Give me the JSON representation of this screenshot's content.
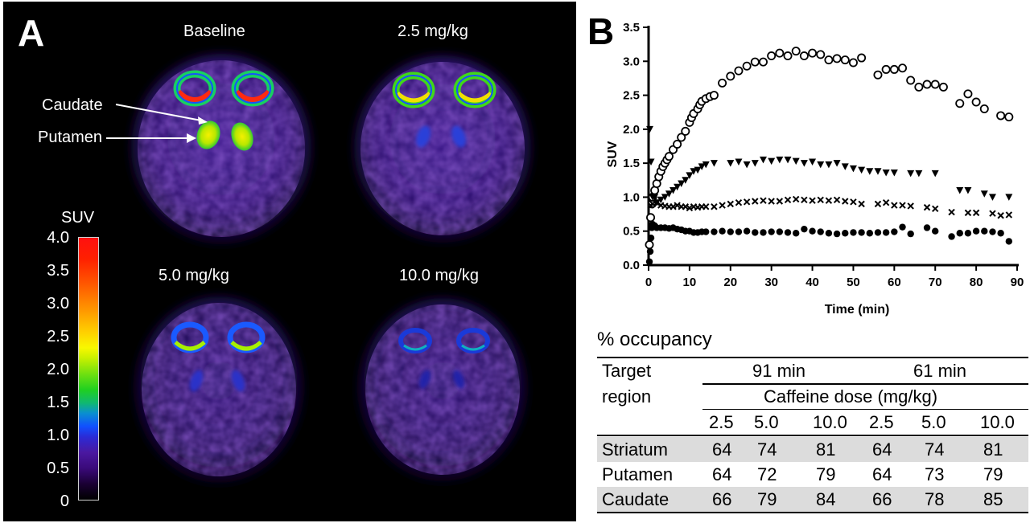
{
  "panel_a": {
    "letter": "A",
    "images": [
      {
        "title": "Baseline"
      },
      {
        "title": "2.5 mg/kg"
      },
      {
        "title": "5.0 mg/kg"
      },
      {
        "title": "10.0 mg/kg"
      }
    ],
    "annotations": {
      "caudate": "Caudate",
      "putamen": "Putamen"
    },
    "colorbar": {
      "title": "SUV",
      "ticks": [
        "4.0",
        "3.5",
        "3.0",
        "2.5",
        "2.0",
        "1.5",
        "1.0",
        "0.5",
        "0"
      ]
    }
  },
  "panel_b": {
    "letter": "B",
    "table": {
      "title": "% occupancy",
      "row_header": [
        "Target",
        "region"
      ],
      "time_groups": [
        "91 min",
        "61 min"
      ],
      "dose_header": "Caffeine dose (mg/kg)",
      "doses": [
        "2.5",
        "5.0",
        "10.0",
        "2.5",
        "5.0",
        "10.0"
      ],
      "rows": [
        {
          "region": "Striatum",
          "values": [
            "64",
            "74",
            "81",
            "64",
            "74",
            "81"
          ]
        },
        {
          "region": "Putamen",
          "values": [
            "64",
            "72",
            "79",
            "64",
            "73",
            "79"
          ]
        },
        {
          "region": "Caudate",
          "values": [
            "66",
            "79",
            "84",
            "66",
            "78",
            "85"
          ]
        }
      ]
    }
  },
  "chart_data": {
    "type": "scatter",
    "title": "",
    "xlabel": "Time (min)",
    "ylabel": "SUV",
    "xlim": [
      0,
      90
    ],
    "ylim": [
      0,
      3.5
    ],
    "xticks": [
      "0",
      "10",
      "20",
      "30",
      "40",
      "50",
      "60",
      "70",
      "80",
      "90"
    ],
    "yticks": [
      "0.0",
      "0.5",
      "1.0",
      "1.5",
      "2.0",
      "2.5",
      "3.0",
      "3.5"
    ],
    "series": [
      {
        "marker": "open-circle",
        "points": [
          [
            0.2,
            0.3
          ],
          [
            0.5,
            0.7
          ],
          [
            0.8,
            0.9
          ],
          [
            1,
            1.0
          ],
          [
            1.5,
            1.1
          ],
          [
            2,
            1.2
          ],
          [
            2.5,
            1.3
          ],
          [
            3,
            1.38
          ],
          [
            3.5,
            1.45
          ],
          [
            4,
            1.5
          ],
          [
            4.5,
            1.55
          ],
          [
            5,
            1.6
          ],
          [
            6,
            1.7
          ],
          [
            7,
            1.78
          ],
          [
            8,
            1.88
          ],
          [
            9,
            1.97
          ],
          [
            10,
            2.1
          ],
          [
            10.5,
            2.17
          ],
          [
            11,
            2.23
          ],
          [
            12,
            2.3
          ],
          [
            12.5,
            2.36
          ],
          [
            13,
            2.41
          ],
          [
            14,
            2.45
          ],
          [
            15,
            2.48
          ],
          [
            16,
            2.5
          ],
          [
            18,
            2.68
          ],
          [
            20,
            2.78
          ],
          [
            22,
            2.86
          ],
          [
            24,
            2.93
          ],
          [
            26,
            2.99
          ],
          [
            28,
            2.99
          ],
          [
            30,
            3.08
          ],
          [
            32,
            3.12
          ],
          [
            34,
            3.08
          ],
          [
            36,
            3.15
          ],
          [
            38,
            3.08
          ],
          [
            40,
            3.12
          ],
          [
            42,
            3.1
          ],
          [
            44,
            3.02
          ],
          [
            46,
            3.04
          ],
          [
            48,
            3.02
          ],
          [
            50,
            2.98
          ],
          [
            52,
            3.05
          ],
          [
            56,
            2.8
          ],
          [
            58,
            2.88
          ],
          [
            60,
            2.88
          ],
          [
            62,
            2.9
          ],
          [
            64,
            2.72
          ],
          [
            66,
            2.62
          ],
          [
            68,
            2.66
          ],
          [
            70,
            2.66
          ],
          [
            72,
            2.62
          ],
          [
            76,
            2.38
          ],
          [
            78,
            2.52
          ],
          [
            80,
            2.4
          ],
          [
            82,
            2.3
          ],
          [
            86,
            2.2
          ],
          [
            88,
            2.18
          ]
        ]
      },
      {
        "marker": "filled-triangle-down",
        "points": [
          [
            0.3,
            2.0
          ],
          [
            0.6,
            1.52
          ],
          [
            1,
            1.0
          ],
          [
            1.5,
            1.0
          ],
          [
            2,
            0.92
          ],
          [
            3,
            0.96
          ],
          [
            4,
            1.0
          ],
          [
            5,
            1.05
          ],
          [
            6,
            1.1
          ],
          [
            7,
            1.15
          ],
          [
            8,
            1.2
          ],
          [
            9,
            1.25
          ],
          [
            10,
            1.32
          ],
          [
            11,
            1.38
          ],
          [
            12,
            1.4
          ],
          [
            13,
            1.45
          ],
          [
            14,
            1.48
          ],
          [
            16,
            1.5
          ],
          [
            20,
            1.5
          ],
          [
            22,
            1.52
          ],
          [
            24,
            1.48
          ],
          [
            26,
            1.5
          ],
          [
            28,
            1.55
          ],
          [
            30,
            1.53
          ],
          [
            32,
            1.55
          ],
          [
            34,
            1.55
          ],
          [
            36,
            1.53
          ],
          [
            38,
            1.5
          ],
          [
            40,
            1.52
          ],
          [
            42,
            1.48
          ],
          [
            44,
            1.48
          ],
          [
            46,
            1.5
          ],
          [
            48,
            1.45
          ],
          [
            50,
            1.42
          ],
          [
            52,
            1.4
          ],
          [
            54,
            1.38
          ],
          [
            56,
            1.38
          ],
          [
            58,
            1.36
          ],
          [
            60,
            1.36
          ],
          [
            64,
            1.35
          ],
          [
            66,
            1.35
          ],
          [
            70,
            1.35
          ],
          [
            76,
            1.1
          ],
          [
            78,
            1.1
          ],
          [
            82,
            1.05
          ],
          [
            84,
            1.0
          ],
          [
            88,
            1.0
          ]
        ]
      },
      {
        "marker": "cross",
        "points": [
          [
            0.5,
            0.88
          ],
          [
            1,
            0.9
          ],
          [
            2,
            0.92
          ],
          [
            3,
            0.88
          ],
          [
            4,
            0.87
          ],
          [
            5,
            0.86
          ],
          [
            6,
            0.86
          ],
          [
            7,
            0.88
          ],
          [
            8,
            0.86
          ],
          [
            9,
            0.86
          ],
          [
            10,
            0.84
          ],
          [
            11,
            0.86
          ],
          [
            12,
            0.85
          ],
          [
            13,
            0.86
          ],
          [
            14,
            0.86
          ],
          [
            16,
            0.86
          ],
          [
            18,
            0.88
          ],
          [
            20,
            0.9
          ],
          [
            22,
            0.92
          ],
          [
            24,
            0.93
          ],
          [
            26,
            0.94
          ],
          [
            28,
            0.95
          ],
          [
            30,
            0.94
          ],
          [
            32,
            0.94
          ],
          [
            34,
            0.96
          ],
          [
            36,
            0.97
          ],
          [
            38,
            0.96
          ],
          [
            40,
            0.95
          ],
          [
            42,
            0.96
          ],
          [
            44,
            0.95
          ],
          [
            46,
            0.96
          ],
          [
            48,
            0.94
          ],
          [
            50,
            0.93
          ],
          [
            52,
            0.9
          ],
          [
            56,
            0.9
          ],
          [
            58,
            0.92
          ],
          [
            60,
            0.88
          ],
          [
            62,
            0.88
          ],
          [
            64,
            0.87
          ],
          [
            68,
            0.85
          ],
          [
            70,
            0.83
          ],
          [
            74,
            0.78
          ],
          [
            78,
            0.77
          ],
          [
            80,
            0.77
          ],
          [
            84,
            0.76
          ],
          [
            86,
            0.73
          ],
          [
            88,
            0.74
          ]
        ]
      },
      {
        "marker": "filled-circle",
        "points": [
          [
            0.2,
            0.05
          ],
          [
            0.4,
            0.2
          ],
          [
            0.6,
            0.4
          ],
          [
            0.8,
            0.55
          ],
          [
            1,
            0.6
          ],
          [
            1.5,
            0.58
          ],
          [
            2,
            0.55
          ],
          [
            3,
            0.55
          ],
          [
            4,
            0.55
          ],
          [
            5,
            0.54
          ],
          [
            6,
            0.55
          ],
          [
            7,
            0.53
          ],
          [
            8,
            0.52
          ],
          [
            9,
            0.5
          ],
          [
            10,
            0.5
          ],
          [
            11,
            0.48
          ],
          [
            12,
            0.48
          ],
          [
            13,
            0.49
          ],
          [
            14,
            0.49
          ],
          [
            16,
            0.49
          ],
          [
            18,
            0.5
          ],
          [
            20,
            0.49
          ],
          [
            22,
            0.49
          ],
          [
            24,
            0.5
          ],
          [
            26,
            0.48
          ],
          [
            28,
            0.48
          ],
          [
            30,
            0.49
          ],
          [
            32,
            0.49
          ],
          [
            34,
            0.48
          ],
          [
            36,
            0.47
          ],
          [
            38,
            0.53
          ],
          [
            40,
            0.5
          ],
          [
            42,
            0.49
          ],
          [
            44,
            0.47
          ],
          [
            46,
            0.46
          ],
          [
            48,
            0.47
          ],
          [
            50,
            0.48
          ],
          [
            52,
            0.48
          ],
          [
            54,
            0.47
          ],
          [
            56,
            0.48
          ],
          [
            58,
            0.48
          ],
          [
            60,
            0.49
          ],
          [
            62,
            0.56
          ],
          [
            64,
            0.46
          ],
          [
            68,
            0.55
          ],
          [
            70,
            0.5
          ],
          [
            74,
            0.42
          ],
          [
            76,
            0.47
          ],
          [
            78,
            0.47
          ],
          [
            80,
            0.5
          ],
          [
            82,
            0.5
          ],
          [
            84,
            0.49
          ],
          [
            86,
            0.47
          ],
          [
            88,
            0.35
          ]
        ]
      }
    ]
  }
}
